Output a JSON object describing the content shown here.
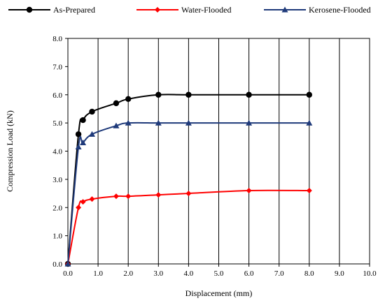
{
  "chart_data": {
    "type": "line",
    "title": "",
    "xlabel": "Displacement (mm)",
    "ylabel": "Compression Load (kN)",
    "xlim": [
      0,
      10
    ],
    "ylim": [
      0,
      8
    ],
    "x_ticks": [
      "0.0",
      "1.0",
      "2.0",
      "3.0",
      "4.0",
      "5.0",
      "6.0",
      "7.0",
      "8.0",
      "9.0",
      "10.0"
    ],
    "y_ticks": [
      "0.0",
      "1.0",
      "2.0",
      "3.0",
      "4.0",
      "5.0",
      "6.0",
      "7.0",
      "8.0"
    ],
    "grid": "vertical",
    "legend_position": "top",
    "series": [
      {
        "name": "As-Prepared",
        "color": "#000000",
        "marker": "circle",
        "x": [
          0,
          0.35,
          0.5,
          0.8,
          1.6,
          2.0,
          3.0,
          4.0,
          6.0,
          8.0
        ],
        "y": [
          0,
          4.6,
          5.1,
          5.4,
          5.7,
          5.85,
          6.0,
          6.0,
          6.0,
          6.0
        ]
      },
      {
        "name": "Water-Flooded",
        "color": "#ff0000",
        "marker": "diamond",
        "x": [
          0,
          0.35,
          0.5,
          0.8,
          1.6,
          2.0,
          3.0,
          4.0,
          6.0,
          8.0
        ],
        "y": [
          0,
          2.0,
          2.2,
          2.3,
          2.4,
          2.4,
          2.45,
          2.5,
          2.6,
          2.6
        ]
      },
      {
        "name": "Kerosene-Flooded",
        "color": "#1f3a7a",
        "marker": "triangle",
        "x": [
          0,
          0.35,
          0.5,
          0.8,
          1.6,
          2.0,
          3.0,
          4.0,
          6.0,
          8.0
        ],
        "y": [
          0,
          4.15,
          4.3,
          4.6,
          4.9,
          5.0,
          5.0,
          5.0,
          5.0,
          5.0
        ]
      }
    ]
  }
}
